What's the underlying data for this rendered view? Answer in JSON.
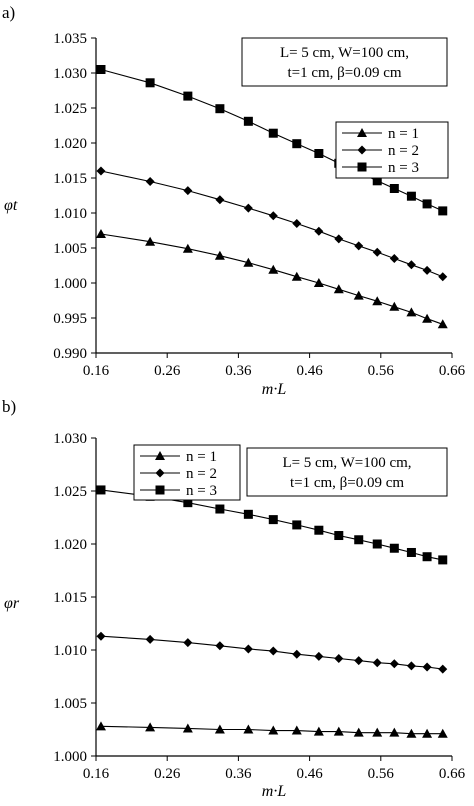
{
  "chart_data": [
    {
      "type": "line",
      "panel_label": "a)",
      "xlabel": "m·L",
      "ylabel": "φt",
      "xlim": [
        0.16,
        0.66
      ],
      "ylim": [
        0.99,
        1.035
      ],
      "x_ticks": [
        "0.16",
        "0.26",
        "0.36",
        "0.46",
        "0.56",
        "0.66"
      ],
      "y_ticks": [
        "0.990",
        "0.995",
        "1.000",
        "1.005",
        "1.010",
        "1.015",
        "1.020",
        "1.025",
        "1.030",
        "1.035"
      ],
      "annotation": [
        "L= 5 cm, W=100 cm,",
        "t=1 cm, β=0.09 cm"
      ],
      "legend_placement": "right",
      "grid": false,
      "x": [
        0.167,
        0.236,
        0.289,
        0.334,
        0.374,
        0.409,
        0.442,
        0.473,
        0.501,
        0.529,
        0.555,
        0.579,
        0.603,
        0.625,
        0.647
      ],
      "series": [
        {
          "name": "n = 1",
          "marker": "triangle",
          "values": [
            1.007,
            1.0059,
            1.0049,
            1.0039,
            1.0029,
            1.0019,
            1.0009,
            1.0,
            0.9991,
            0.9982,
            0.9974,
            0.9966,
            0.9958,
            0.9949,
            0.9941
          ]
        },
        {
          "name": "n = 2",
          "marker": "diamond",
          "values": [
            1.016,
            1.0145,
            1.0132,
            1.0119,
            1.0107,
            1.0096,
            1.0085,
            1.0074,
            1.0063,
            1.0053,
            1.0044,
            1.0035,
            1.0026,
            1.0018,
            1.0009
          ]
        },
        {
          "name": "n = 3",
          "marker": "square",
          "values": [
            1.0305,
            1.0286,
            1.0267,
            1.0249,
            1.0231,
            1.0214,
            1.0199,
            1.0185,
            1.0171,
            1.0158,
            1.0146,
            1.0135,
            1.0124,
            1.0113,
            1.0103
          ]
        }
      ]
    },
    {
      "type": "line",
      "panel_label": "b)",
      "xlabel": "m·L",
      "ylabel": "φr",
      "xlim": [
        0.16,
        0.66
      ],
      "ylim": [
        1.0,
        1.03
      ],
      "x_ticks": [
        "0.16",
        "0.26",
        "0.36",
        "0.46",
        "0.56",
        "0.66"
      ],
      "y_ticks": [
        "1.000",
        "1.005",
        "1.010",
        "1.015",
        "1.020",
        "1.025",
        "1.030"
      ],
      "annotation": [
        "L= 5 cm, W=100 cm,",
        "t=1 cm, β=0.09 cm"
      ],
      "legend_placement": "top-left",
      "grid": false,
      "x": [
        0.167,
        0.236,
        0.289,
        0.334,
        0.374,
        0.409,
        0.442,
        0.473,
        0.501,
        0.529,
        0.555,
        0.579,
        0.603,
        0.625,
        0.647
      ],
      "series": [
        {
          "name": "n = 1",
          "marker": "triangle",
          "values": [
            1.0028,
            1.0027,
            1.0026,
            1.0025,
            1.0025,
            1.0024,
            1.0024,
            1.0023,
            1.0023,
            1.0022,
            1.0022,
            1.0022,
            1.0021,
            1.0021,
            1.0021
          ]
        },
        {
          "name": "n = 2",
          "marker": "diamond",
          "values": [
            1.0113,
            1.011,
            1.0107,
            1.0104,
            1.0101,
            1.0099,
            1.0096,
            1.0094,
            1.0092,
            1.009,
            1.0088,
            1.0087,
            1.0085,
            1.0084,
            1.0082
          ]
        },
        {
          "name": "n = 3",
          "marker": "square",
          "values": [
            1.0251,
            1.0245,
            1.0239,
            1.0233,
            1.0228,
            1.0223,
            1.0218,
            1.0213,
            1.0208,
            1.0204,
            1.02,
            1.0196,
            1.0192,
            1.0188,
            1.0185
          ]
        }
      ]
    }
  ]
}
